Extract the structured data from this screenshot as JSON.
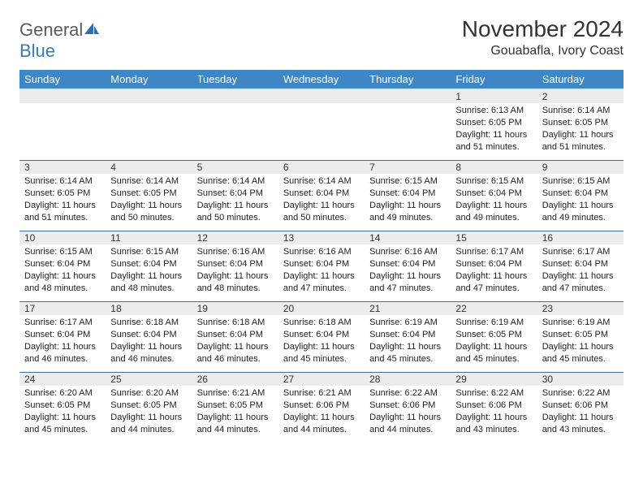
{
  "logo": {
    "text1": "General",
    "text2": "Blue"
  },
  "title": "November 2024",
  "location": "Gouabafla, Ivory Coast",
  "colors": {
    "header_bg": "#3d87c7",
    "header_text": "#ffffff",
    "daynum_bg": "#ececec",
    "border": "#3d6fa0",
    "logo_gray": "#5a5a5a",
    "logo_blue": "#3a7ab8"
  },
  "weekdays": [
    "Sunday",
    "Monday",
    "Tuesday",
    "Wednesday",
    "Thursday",
    "Friday",
    "Saturday"
  ],
  "weeks": [
    {
      "nums": [
        "",
        "",
        "",
        "",
        "",
        "1",
        "2"
      ],
      "cells": [
        null,
        null,
        null,
        null,
        null,
        {
          "sunrise": "Sunrise: 6:13 AM",
          "sunset": "Sunset: 6:05 PM",
          "day1": "Daylight: 11 hours",
          "day2": "and 51 minutes."
        },
        {
          "sunrise": "Sunrise: 6:14 AM",
          "sunset": "Sunset: 6:05 PM",
          "day1": "Daylight: 11 hours",
          "day2": "and 51 minutes."
        }
      ]
    },
    {
      "nums": [
        "3",
        "4",
        "5",
        "6",
        "7",
        "8",
        "9"
      ],
      "cells": [
        {
          "sunrise": "Sunrise: 6:14 AM",
          "sunset": "Sunset: 6:05 PM",
          "day1": "Daylight: 11 hours",
          "day2": "and 51 minutes."
        },
        {
          "sunrise": "Sunrise: 6:14 AM",
          "sunset": "Sunset: 6:05 PM",
          "day1": "Daylight: 11 hours",
          "day2": "and 50 minutes."
        },
        {
          "sunrise": "Sunrise: 6:14 AM",
          "sunset": "Sunset: 6:04 PM",
          "day1": "Daylight: 11 hours",
          "day2": "and 50 minutes."
        },
        {
          "sunrise": "Sunrise: 6:14 AM",
          "sunset": "Sunset: 6:04 PM",
          "day1": "Daylight: 11 hours",
          "day2": "and 50 minutes."
        },
        {
          "sunrise": "Sunrise: 6:15 AM",
          "sunset": "Sunset: 6:04 PM",
          "day1": "Daylight: 11 hours",
          "day2": "and 49 minutes."
        },
        {
          "sunrise": "Sunrise: 6:15 AM",
          "sunset": "Sunset: 6:04 PM",
          "day1": "Daylight: 11 hours",
          "day2": "and 49 minutes."
        },
        {
          "sunrise": "Sunrise: 6:15 AM",
          "sunset": "Sunset: 6:04 PM",
          "day1": "Daylight: 11 hours",
          "day2": "and 49 minutes."
        }
      ]
    },
    {
      "nums": [
        "10",
        "11",
        "12",
        "13",
        "14",
        "15",
        "16"
      ],
      "cells": [
        {
          "sunrise": "Sunrise: 6:15 AM",
          "sunset": "Sunset: 6:04 PM",
          "day1": "Daylight: 11 hours",
          "day2": "and 48 minutes."
        },
        {
          "sunrise": "Sunrise: 6:15 AM",
          "sunset": "Sunset: 6:04 PM",
          "day1": "Daylight: 11 hours",
          "day2": "and 48 minutes."
        },
        {
          "sunrise": "Sunrise: 6:16 AM",
          "sunset": "Sunset: 6:04 PM",
          "day1": "Daylight: 11 hours",
          "day2": "and 48 minutes."
        },
        {
          "sunrise": "Sunrise: 6:16 AM",
          "sunset": "Sunset: 6:04 PM",
          "day1": "Daylight: 11 hours",
          "day2": "and 47 minutes."
        },
        {
          "sunrise": "Sunrise: 6:16 AM",
          "sunset": "Sunset: 6:04 PM",
          "day1": "Daylight: 11 hours",
          "day2": "and 47 minutes."
        },
        {
          "sunrise": "Sunrise: 6:17 AM",
          "sunset": "Sunset: 6:04 PM",
          "day1": "Daylight: 11 hours",
          "day2": "and 47 minutes."
        },
        {
          "sunrise": "Sunrise: 6:17 AM",
          "sunset": "Sunset: 6:04 PM",
          "day1": "Daylight: 11 hours",
          "day2": "and 47 minutes."
        }
      ]
    },
    {
      "nums": [
        "17",
        "18",
        "19",
        "20",
        "21",
        "22",
        "23"
      ],
      "cells": [
        {
          "sunrise": "Sunrise: 6:17 AM",
          "sunset": "Sunset: 6:04 PM",
          "day1": "Daylight: 11 hours",
          "day2": "and 46 minutes."
        },
        {
          "sunrise": "Sunrise: 6:18 AM",
          "sunset": "Sunset: 6:04 PM",
          "day1": "Daylight: 11 hours",
          "day2": "and 46 minutes."
        },
        {
          "sunrise": "Sunrise: 6:18 AM",
          "sunset": "Sunset: 6:04 PM",
          "day1": "Daylight: 11 hours",
          "day2": "and 46 minutes."
        },
        {
          "sunrise": "Sunrise: 6:18 AM",
          "sunset": "Sunset: 6:04 PM",
          "day1": "Daylight: 11 hours",
          "day2": "and 45 minutes."
        },
        {
          "sunrise": "Sunrise: 6:19 AM",
          "sunset": "Sunset: 6:04 PM",
          "day1": "Daylight: 11 hours",
          "day2": "and 45 minutes."
        },
        {
          "sunrise": "Sunrise: 6:19 AM",
          "sunset": "Sunset: 6:05 PM",
          "day1": "Daylight: 11 hours",
          "day2": "and 45 minutes."
        },
        {
          "sunrise": "Sunrise: 6:19 AM",
          "sunset": "Sunset: 6:05 PM",
          "day1": "Daylight: 11 hours",
          "day2": "and 45 minutes."
        }
      ]
    },
    {
      "nums": [
        "24",
        "25",
        "26",
        "27",
        "28",
        "29",
        "30"
      ],
      "cells": [
        {
          "sunrise": "Sunrise: 6:20 AM",
          "sunset": "Sunset: 6:05 PM",
          "day1": "Daylight: 11 hours",
          "day2": "and 45 minutes."
        },
        {
          "sunrise": "Sunrise: 6:20 AM",
          "sunset": "Sunset: 6:05 PM",
          "day1": "Daylight: 11 hours",
          "day2": "and 44 minutes."
        },
        {
          "sunrise": "Sunrise: 6:21 AM",
          "sunset": "Sunset: 6:05 PM",
          "day1": "Daylight: 11 hours",
          "day2": "and 44 minutes."
        },
        {
          "sunrise": "Sunrise: 6:21 AM",
          "sunset": "Sunset: 6:06 PM",
          "day1": "Daylight: 11 hours",
          "day2": "and 44 minutes."
        },
        {
          "sunrise": "Sunrise: 6:22 AM",
          "sunset": "Sunset: 6:06 PM",
          "day1": "Daylight: 11 hours",
          "day2": "and 44 minutes."
        },
        {
          "sunrise": "Sunrise: 6:22 AM",
          "sunset": "Sunset: 6:06 PM",
          "day1": "Daylight: 11 hours",
          "day2": "and 43 minutes."
        },
        {
          "sunrise": "Sunrise: 6:22 AM",
          "sunset": "Sunset: 6:06 PM",
          "day1": "Daylight: 11 hours",
          "day2": "and 43 minutes."
        }
      ]
    }
  ]
}
